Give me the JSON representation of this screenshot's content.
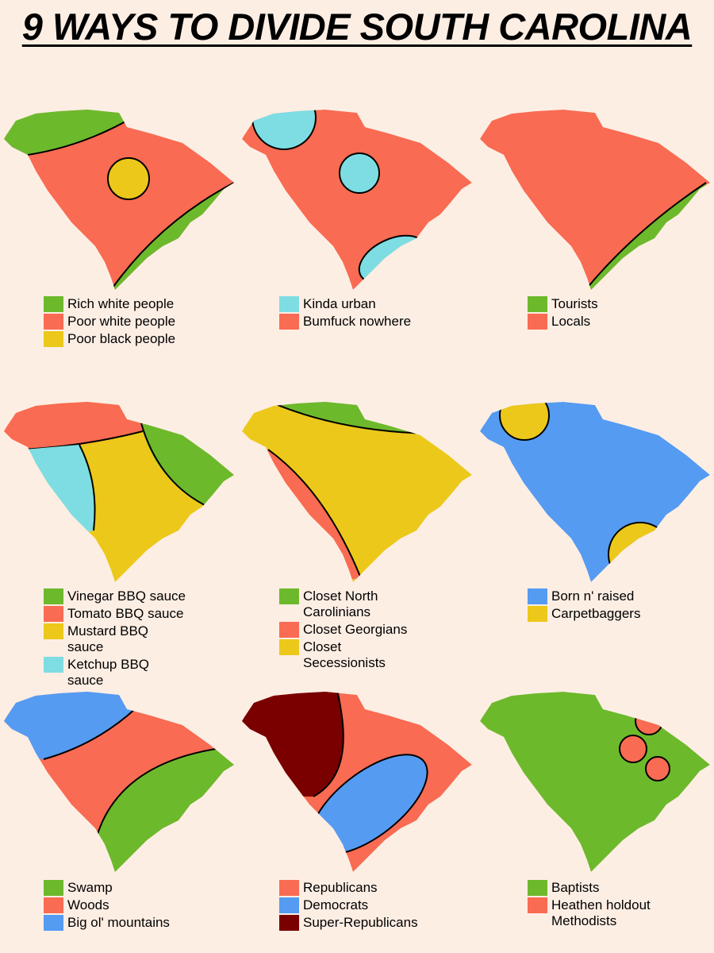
{
  "title": "9 WAYS TO DIVIDE SOUTH CAROLINA",
  "panels": [
    {
      "legend": [
        {
          "label": "Rich white people",
          "color": "#6db92c"
        },
        {
          "label": "Poor white people",
          "color": "#f96b52"
        },
        {
          "label": "Poor black people",
          "color": "#ecc81a"
        }
      ]
    },
    {
      "legend": [
        {
          "label": "Kinda urban",
          "color": "#7ddde2"
        },
        {
          "label": "Bumfuck nowhere",
          "color": "#f96b52"
        }
      ]
    },
    {
      "legend": [
        {
          "label": "Tourists",
          "color": "#6db92c"
        },
        {
          "label": "Locals",
          "color": "#f96b52"
        }
      ]
    },
    {
      "legend": [
        {
          "label": "Vinegar BBQ sauce",
          "color": "#6db92c"
        },
        {
          "label": "Tomato BBQ sauce",
          "color": "#f96b52"
        },
        {
          "label": "Mustard BBQ sauce",
          "color": "#ecc81a"
        },
        {
          "label": "Ketchup BBQ sauce",
          "color": "#7ddde2"
        }
      ]
    },
    {
      "legend": [
        {
          "label": "Closet North Carolinians",
          "color": "#6db92c"
        },
        {
          "label": "Closet Georgians",
          "color": "#f96b52"
        },
        {
          "label": "Closet Secessionists",
          "color": "#ecc81a"
        }
      ]
    },
    {
      "legend": [
        {
          "label": "Born n' raised",
          "color": "#559bf2"
        },
        {
          "label": "Carpetbaggers",
          "color": "#ecc81a"
        }
      ]
    },
    {
      "legend": [
        {
          "label": "Swamp",
          "color": "#6db92c"
        },
        {
          "label": "Woods",
          "color": "#f96b52"
        },
        {
          "label": "Big ol' mountains",
          "color": "#559bf2"
        }
      ]
    },
    {
      "legend": [
        {
          "label": "Republicans",
          "color": "#f96b52"
        },
        {
          "label": "Democrats",
          "color": "#559bf2"
        },
        {
          "label": "Super-Republicans",
          "color": "#7a0000"
        }
      ]
    },
    {
      "legend": [
        {
          "label": "Baptists",
          "color": "#6db92c"
        },
        {
          "label": "Heathen holdout Methodists",
          "color": "#f96b52"
        }
      ]
    }
  ]
}
